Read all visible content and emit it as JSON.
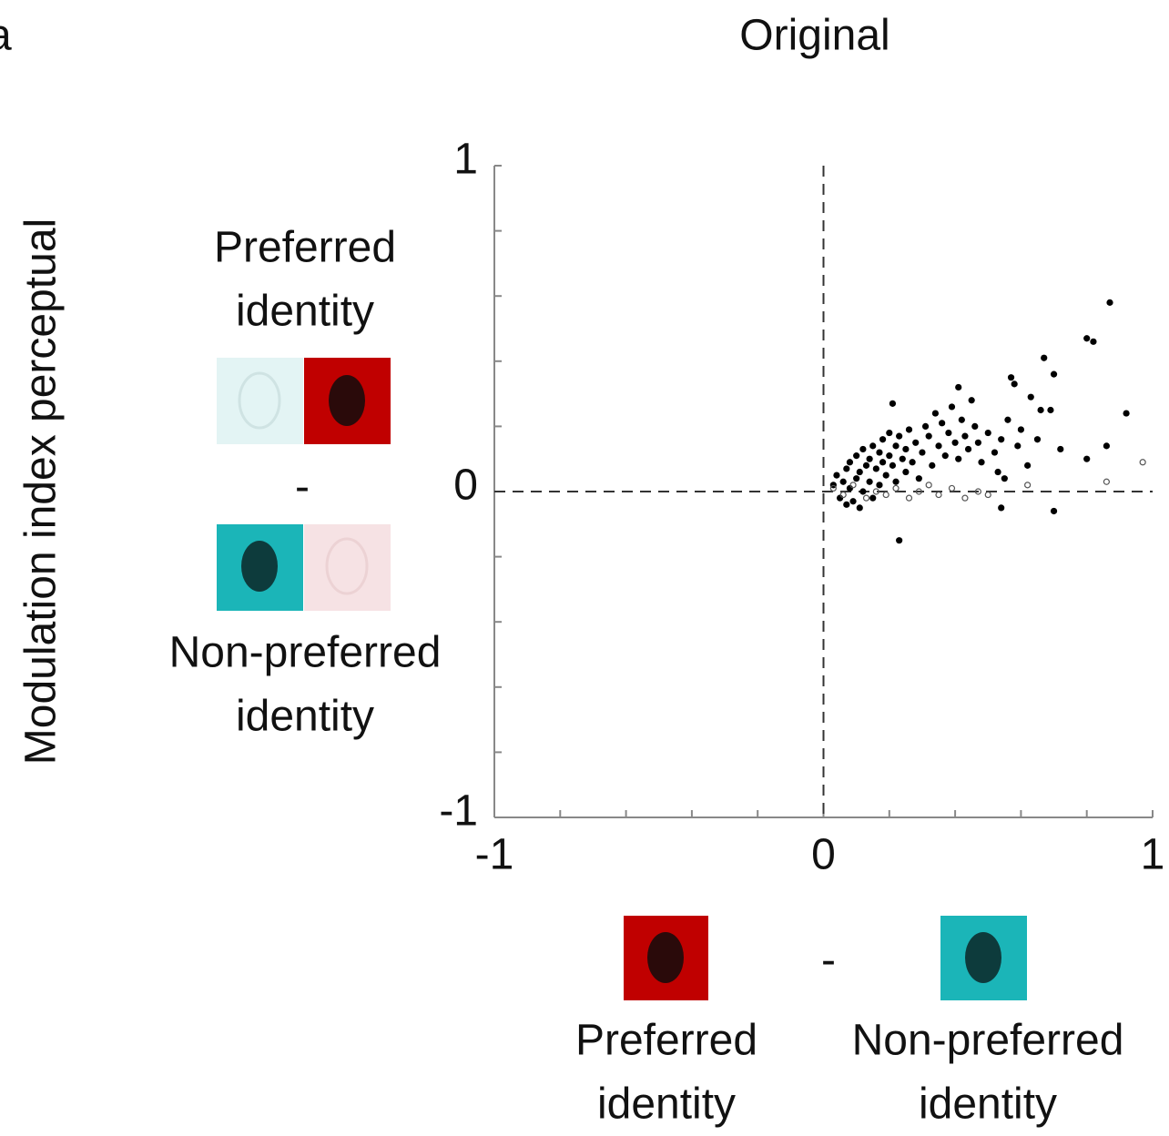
{
  "chart_data": {
    "type": "scatter",
    "panel_label": "a",
    "title": "Original",
    "ylabel": "Modulation index perceptual",
    "left_labels": {
      "top": [
        "Preferred",
        "identity"
      ],
      "minus": "-",
      "bottom": [
        "Non-preferred",
        "identity"
      ]
    },
    "bottom_labels": {
      "left": [
        "Preferred",
        "identity"
      ],
      "minus": "-",
      "right": [
        "Non-preferred",
        "identity"
      ]
    },
    "xlim": [
      -1,
      1
    ],
    "ylim": [
      -1,
      1
    ],
    "xticks": [
      -1,
      0,
      1
    ],
    "yticks": [
      -1,
      0,
      1
    ],
    "x_minor_ticks": [
      -0.8,
      -0.6,
      -0.4,
      -0.2,
      0.2,
      0.4,
      0.6,
      0.8
    ],
    "y_minor_ticks": [
      -0.8,
      -0.6,
      -0.4,
      -0.2,
      0.2,
      0.4,
      0.6,
      0.8
    ],
    "reference_lines": {
      "x": 0,
      "y": 0
    },
    "series": [
      {
        "marker": "filled",
        "color": "#000000",
        "x": [
          0.03,
          0.04,
          0.05,
          0.06,
          0.07,
          0.08,
          0.08,
          0.09,
          0.1,
          0.1,
          0.11,
          0.12,
          0.12,
          0.13,
          0.14,
          0.14,
          0.15,
          0.15,
          0.16,
          0.17,
          0.17,
          0.18,
          0.18,
          0.19,
          0.2,
          0.2,
          0.21,
          0.21,
          0.22,
          0.22,
          0.23,
          0.23,
          0.24,
          0.25,
          0.25,
          0.26,
          0.27,
          0.28,
          0.29,
          0.3,
          0.31,
          0.32,
          0.33,
          0.34,
          0.35,
          0.36,
          0.37,
          0.38,
          0.39,
          0.4,
          0.41,
          0.41,
          0.42,
          0.43,
          0.44,
          0.45,
          0.46,
          0.47,
          0.48,
          0.5,
          0.52,
          0.53,
          0.54,
          0.55,
          0.56,
          0.57,
          0.58,
          0.59,
          0.6,
          0.62,
          0.63,
          0.65,
          0.66,
          0.67,
          0.69,
          0.7,
          0.7,
          0.72,
          0.8,
          0.82,
          0.8,
          0.86,
          0.87,
          0.92,
          0.54,
          0.11,
          0.07
        ],
        "y": [
          0.02,
          0.05,
          -0.02,
          0.03,
          0.07,
          0.01,
          0.09,
          -0.03,
          0.04,
          0.11,
          0.06,
          0.0,
          0.13,
          0.08,
          0.03,
          0.1,
          0.14,
          -0.02,
          0.07,
          0.12,
          0.02,
          0.09,
          0.16,
          0.05,
          0.11,
          0.18,
          0.27,
          0.08,
          0.14,
          0.03,
          -0.15,
          0.17,
          0.1,
          0.06,
          0.13,
          0.19,
          0.09,
          0.15,
          0.04,
          0.12,
          0.2,
          0.17,
          0.08,
          0.24,
          0.14,
          0.21,
          0.11,
          0.18,
          0.26,
          0.15,
          0.32,
          0.1,
          0.22,
          0.17,
          0.13,
          0.28,
          0.2,
          0.15,
          0.09,
          0.18,
          0.12,
          0.06,
          0.16,
          0.04,
          0.22,
          0.35,
          0.33,
          0.14,
          0.19,
          0.08,
          0.29,
          0.16,
          0.25,
          0.41,
          0.25,
          0.36,
          -0.06,
          0.13,
          0.47,
          0.46,
          0.1,
          0.14,
          0.58,
          0.24,
          -0.05,
          -0.05,
          -0.04
        ]
      },
      {
        "marker": "open",
        "color": "#555555",
        "x": [
          0.03,
          0.06,
          0.09,
          0.13,
          0.16,
          0.19,
          0.22,
          0.26,
          0.29,
          0.32,
          0.35,
          0.39,
          0.43,
          0.47,
          0.5,
          0.86,
          0.97,
          0.62
        ],
        "y": [
          0.01,
          -0.01,
          0.02,
          -0.02,
          0.0,
          -0.01,
          0.01,
          -0.02,
          0.0,
          0.02,
          -0.01,
          0.01,
          -0.02,
          0.0,
          -0.01,
          0.03,
          0.09,
          0.02
        ]
      }
    ]
  }
}
